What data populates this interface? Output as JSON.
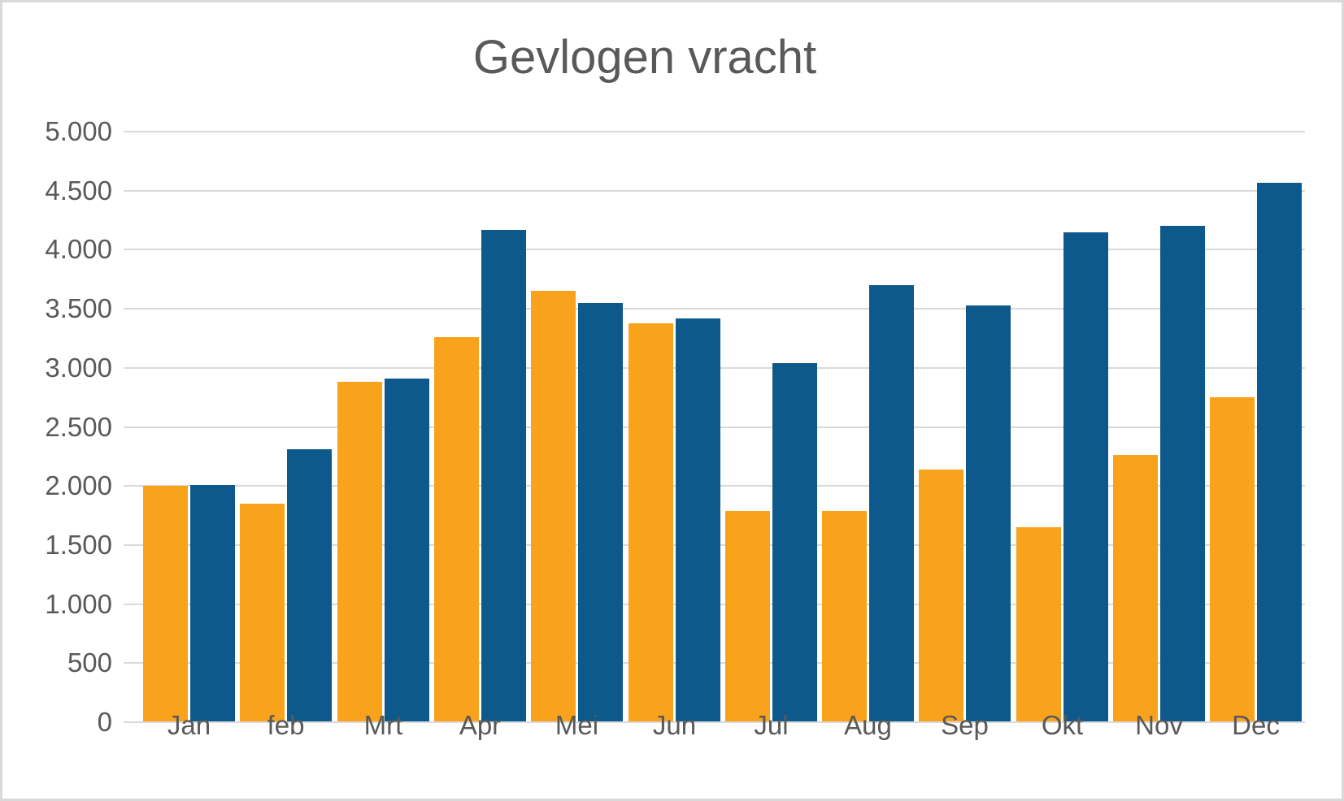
{
  "chart_data": {
    "type": "bar",
    "title": "Gevlogen vracht",
    "categories": [
      "Jan",
      "feb",
      "Mrt",
      "Apr",
      "Mei",
      "Jun",
      "Jul",
      "Aug",
      "Sep",
      "Okt",
      "Nov",
      "Dec"
    ],
    "series": [
      {
        "name": "orange",
        "color": "#F9A21C",
        "values": [
          2000,
          1850,
          2880,
          3260,
          3650,
          3380,
          1790,
          1790,
          2140,
          1650,
          2260,
          2750
        ]
      },
      {
        "name": "blue",
        "color": "#0E598C",
        "values": [
          2010,
          2310,
          2910,
          4170,
          3550,
          3420,
          3040,
          3700,
          3530,
          4150,
          4200,
          4570
        ]
      }
    ],
    "ylim": [
      0,
      5000
    ],
    "ytick_step": 500,
    "ytick_labels": [
      "0",
      "500",
      "1.000",
      "1.500",
      "2.000",
      "2.500",
      "3.000",
      "3.500",
      "4.000",
      "4.500",
      "5.000"
    ],
    "grid": true,
    "legend": "none"
  },
  "colors": {
    "background": "#FFFFFF",
    "frame_border": "#D9D9D9",
    "gridline": "#D9D9D9",
    "axis_text": "#595959",
    "title_text": "#595959",
    "bar_orange": "#F9A21C",
    "bar_blue": "#0E598C"
  }
}
